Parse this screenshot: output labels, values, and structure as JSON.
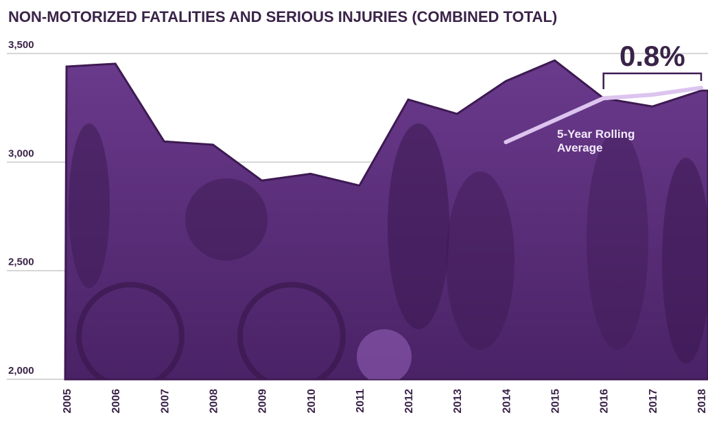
{
  "chart_data": {
    "type": "area",
    "title": "NON-MOTORIZED FATALITIES AND SERIOUS INJURIES (COMBINED TOTAL)",
    "x": [
      2005,
      2006,
      2007,
      2008,
      2009,
      2010,
      2011,
      2012,
      2013,
      2014,
      2015,
      2016,
      2017,
      2018
    ],
    "series": [
      {
        "name": "Combined Total",
        "color": "#5b2f7c",
        "values": [
          3440,
          3453,
          3095,
          3080,
          2915,
          2946,
          2892,
          3288,
          3222,
          3373,
          3468,
          3294,
          3256,
          3329
        ]
      },
      {
        "name": "5-Year Rolling Average",
        "color": "#dcc4ef",
        "values": [
          null,
          null,
          null,
          null,
          null,
          null,
          null,
          null,
          null,
          3092,
          3193,
          3294,
          3310,
          3342
        ]
      }
    ],
    "annotation": "0.8%",
    "xlim": [
      2005,
      2018
    ],
    "ylim": [
      2000,
      3500
    ],
    "yticks": [
      {
        "value": 2000,
        "label": "2,000"
      },
      {
        "value": 2500,
        "label": "2,500"
      },
      {
        "value": 3000,
        "label": "3,000"
      },
      {
        "value": 3500,
        "label": "3,500"
      }
    ],
    "grid": true
  }
}
